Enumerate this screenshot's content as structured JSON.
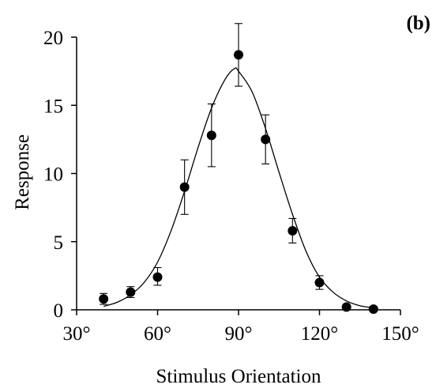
{
  "chart_data": {
    "type": "scatter",
    "panel_label": "(b)",
    "xlabel": "Stimulus Orientation",
    "ylabel": "Response",
    "xlim": [
      30,
      150
    ],
    "ylim": [
      0,
      20
    ],
    "x_ticks": [
      30,
      60,
      90,
      120,
      150
    ],
    "x_tick_labels": [
      "30°",
      "60°",
      "90°",
      "120°",
      "150°"
    ],
    "y_ticks": [
      0,
      5,
      10,
      15,
      20
    ],
    "y_tick_labels": [
      "0",
      "5",
      "10",
      "15",
      "20"
    ],
    "grid": false,
    "series": [
      {
        "x": [
          40,
          50,
          60,
          70,
          80,
          90,
          100,
          110,
          120,
          130,
          140
        ],
        "y": [
          0.8,
          1.3,
          2.4,
          9.0,
          12.8,
          18.7,
          12.5,
          5.8,
          2.0,
          0.2,
          0.05
        ],
        "err_upper": [
          0.4,
          0.4,
          0.7,
          2.0,
          2.3,
          2.3,
          1.8,
          0.9,
          0.5,
          0.1,
          0.1
        ],
        "err_lower": [
          0.4,
          0.4,
          0.6,
          2.0,
          2.3,
          2.3,
          1.8,
          0.9,
          0.5,
          0.1,
          0.1
        ]
      }
    ],
    "fit_curve": {
      "type": "gaussian",
      "x": [
        40,
        45,
        50,
        55,
        60,
        65,
        70,
        75,
        80,
        85,
        88.5,
        90,
        95,
        100,
        105,
        110,
        115,
        120,
        125,
        130,
        135,
        140
      ],
      "y": [
        0.25,
        0.55,
        1.1,
        2.0,
        3.5,
        5.8,
        8.7,
        11.9,
        14.8,
        16.9,
        17.7,
        17.5,
        16.0,
        13.3,
        10.1,
        7.0,
        4.3,
        2.4,
        1.3,
        0.65,
        0.3,
        0.15
      ]
    }
  }
}
